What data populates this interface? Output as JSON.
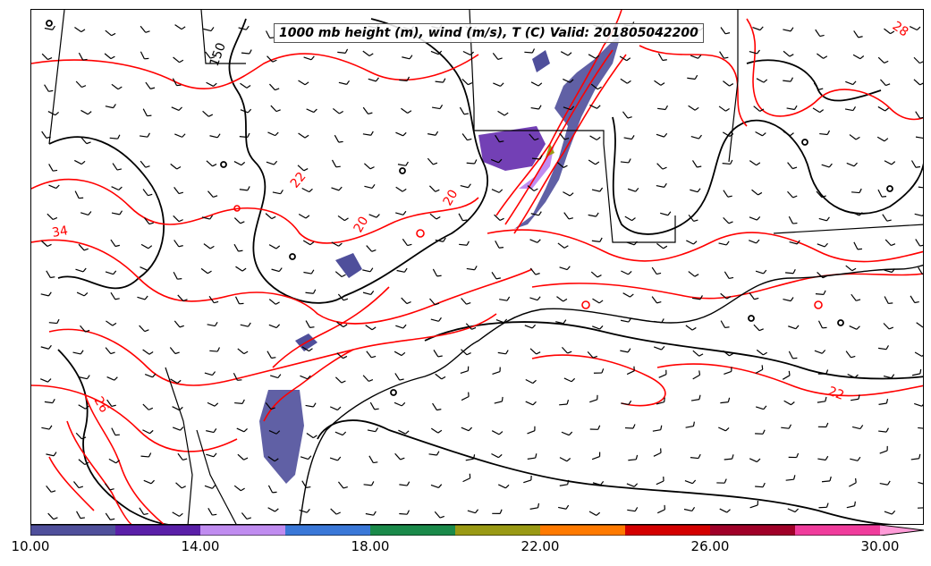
{
  "title": "1000 mb height (m), wind (m/s), T (C) Valid: 201805042200",
  "contour_labels": {
    "height": [
      "150"
    ],
    "temperature": [
      "28",
      "34",
      "22",
      "20",
      "20",
      "26",
      "22"
    ]
  },
  "colorbar": {
    "tick_labels": [
      "10.00",
      "14.00",
      "18.00",
      "22.00",
      "26.00",
      "30.00"
    ],
    "colors": [
      "#4f4f9b",
      "#5a1fa8",
      "#c08cf0",
      "#3a78d8",
      "#1a8a4a",
      "#9a9a14",
      "#ff7a00",
      "#d40000",
      "#a00028",
      "#f03c9c",
      "#ff9cd8"
    ]
  },
  "colors": {
    "temperature_contour": "#ff0000",
    "height_contour": "#000000",
    "coastline": "#000000"
  }
}
